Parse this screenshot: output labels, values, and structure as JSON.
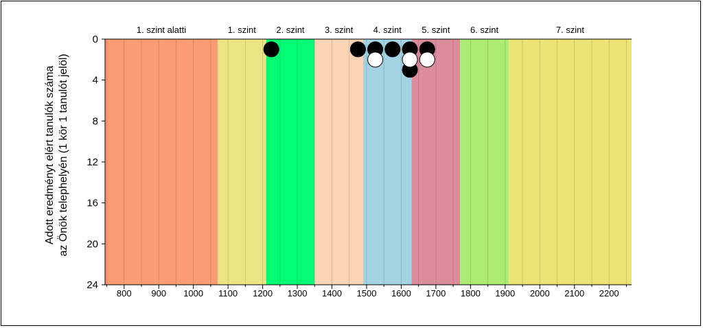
{
  "chart_data": {
    "type": "scatter",
    "title": "",
    "ylabel_lines": [
      "Adott eredményt elért tanulók száma",
      "az Önök telephelyén (1 kör 1 tanulót jelöl)"
    ],
    "xlim": [
      745,
      2265
    ],
    "ylim": [
      0,
      24
    ],
    "y_inverted": true,
    "x_ticks": [
      800,
      900,
      1000,
      1100,
      1200,
      1300,
      1400,
      1500,
      1600,
      1700,
      1800,
      1900,
      2000,
      2100,
      2200
    ],
    "x_minor_step": 50,
    "y_ticks": [
      0,
      4,
      8,
      12,
      16,
      20,
      24
    ],
    "levels": [
      {
        "label": "1. szint alatti",
        "from": 745,
        "to": 1070,
        "color": "#fc9c74"
      },
      {
        "label": "1. szint",
        "from": 1070,
        "to": 1210,
        "color": "#ece484"
      },
      {
        "label": "2. szint",
        "from": 1210,
        "to": 1350,
        "color": "#04fc74"
      },
      {
        "label": "3. szint",
        "from": 1350,
        "to": 1490,
        "color": "#fcd4b4"
      },
      {
        "label": "4. szint",
        "from": 1490,
        "to": 1630,
        "color": "#a4d4e4"
      },
      {
        "label": "5. szint",
        "from": 1630,
        "to": 1770,
        "color": "#dc8c9c"
      },
      {
        "label": "6. szint",
        "from": 1770,
        "to": 1910,
        "color": "#acec74"
      },
      {
        "label": "7. szint",
        "from": 1910,
        "to": 2265,
        "color": "#ece474"
      }
    ],
    "series": [
      {
        "fill": "#000000",
        "points": [
          {
            "x": 1225,
            "y": 1
          },
          {
            "x": 1475,
            "y": 1
          },
          {
            "x": 1525,
            "y": 1
          },
          {
            "x": 1575,
            "y": 1
          },
          {
            "x": 1625,
            "y": 1
          },
          {
            "x": 1675,
            "y": 1
          },
          {
            "x": 1625,
            "y": 3
          }
        ]
      },
      {
        "fill": "#ffffff",
        "points": [
          {
            "x": 1525,
            "y": 2
          },
          {
            "x": 1625,
            "y": 2
          },
          {
            "x": 1675,
            "y": 2
          }
        ]
      }
    ]
  }
}
